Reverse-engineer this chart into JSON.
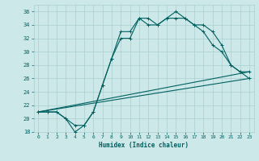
{
  "title": "",
  "xlabel": "Humidex (Indice chaleur)",
  "background_color": "#cce8e8",
  "grid_color": "#aacfcf",
  "line_color": "#006060",
  "xlim": [
    -0.5,
    23.5
  ],
  "ylim": [
    18,
    37
  ],
  "xticks": [
    0,
    1,
    2,
    3,
    4,
    5,
    6,
    7,
    8,
    9,
    10,
    11,
    12,
    13,
    14,
    15,
    16,
    17,
    18,
    19,
    20,
    21,
    22,
    23
  ],
  "yticks": [
    18,
    20,
    22,
    24,
    26,
    28,
    30,
    32,
    34,
    36
  ],
  "line1_x": [
    0,
    1,
    2,
    3,
    4,
    5,
    6,
    7,
    8,
    9,
    10,
    11,
    12,
    13,
    14,
    15,
    16,
    17,
    18,
    19,
    20,
    21,
    22,
    23
  ],
  "line1_y": [
    21,
    21,
    21,
    20,
    19,
    19,
    21,
    25,
    29,
    32,
    32,
    35,
    34,
    34,
    35,
    35,
    35,
    34,
    33,
    31,
    30,
    28,
    27,
    27
  ],
  "line2_x": [
    0,
    1,
    2,
    3,
    4,
    5,
    6,
    7,
    8,
    9,
    10,
    11,
    12,
    13,
    14,
    15,
    16,
    17,
    18,
    19,
    20,
    21,
    22,
    23
  ],
  "line2_y": [
    21,
    21,
    21,
    20,
    18,
    19,
    21,
    25,
    29,
    33,
    33,
    35,
    35,
    34,
    35,
    36,
    35,
    34,
    34,
    33,
    31,
    28,
    27,
    26
  ],
  "line3_x": [
    0,
    23
  ],
  "line3_y": [
    21,
    27
  ],
  "line4_x": [
    0,
    23
  ],
  "line4_y": [
    21,
    26
  ]
}
